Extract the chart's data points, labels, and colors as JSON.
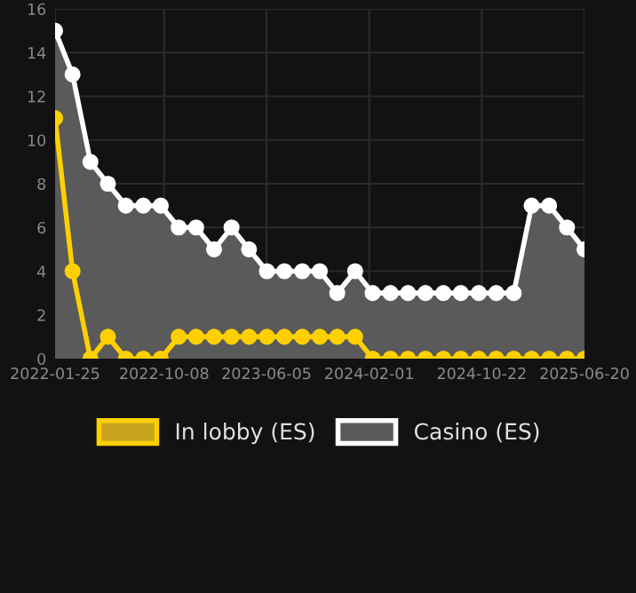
{
  "chart_data": {
    "type": "area",
    "x": [
      "2022-01-25",
      "2022-03-07",
      "2022-04-18",
      "2022-05-29",
      "2022-07-10",
      "2022-08-20",
      "2022-09-30",
      "2022-11-11",
      "2022-12-22",
      "2023-02-02",
      "2023-03-15",
      "2023-04-25",
      "2023-06-06",
      "2023-07-17",
      "2023-08-28",
      "2023-10-08",
      "2023-11-18",
      "2023-12-30",
      "2024-02-09",
      "2024-03-22",
      "2024-05-02",
      "2024-06-12",
      "2024-07-24",
      "2024-09-03",
      "2024-10-15",
      "2024-11-25",
      "2025-01-05",
      "2025-02-16",
      "2025-03-29",
      "2025-05-10",
      "2025-06-20"
    ],
    "series": [
      {
        "name": "In lobby (ES)",
        "color": "#ffd000",
        "values": [
          11,
          4,
          0,
          1,
          0,
          0,
          0,
          1,
          1,
          1,
          1,
          1,
          1,
          1,
          1,
          1,
          1,
          1,
          0,
          0,
          0,
          0,
          0,
          0,
          0,
          0,
          0,
          0,
          0,
          0,
          0
        ]
      },
      {
        "name": "Casino (ES)",
        "color": "#ffffff",
        "values": [
          15,
          13,
          9,
          8,
          7,
          7,
          7,
          6,
          6,
          5,
          6,
          5,
          4,
          4,
          4,
          4,
          3,
          4,
          3,
          3,
          3,
          3,
          3,
          3,
          3,
          3,
          3,
          7,
          7,
          6,
          5
        ]
      }
    ],
    "xlim": [
      "2022-01-25",
      "2025-06-20"
    ],
    "xticks": [
      "2022-01-25",
      "2022-10-08",
      "2023-06-05",
      "2024-02-01",
      "2024-10-22",
      "2025-06-20"
    ],
    "ylim": [
      0,
      16
    ],
    "yticks": [
      0,
      2,
      4,
      6,
      8,
      10,
      12,
      14,
      16
    ],
    "grid": true,
    "legend": "bottom",
    "marker": "circle",
    "line_style": "solid"
  }
}
